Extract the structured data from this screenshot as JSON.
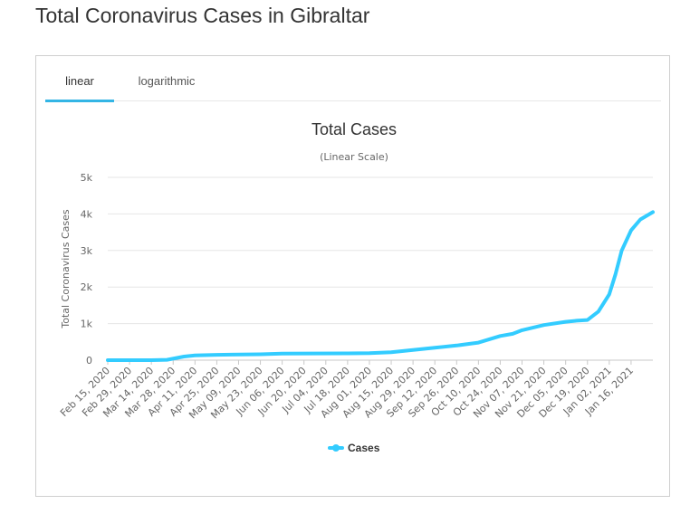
{
  "page_title": "Total Coronavirus Cases in Gibraltar",
  "tabs": [
    {
      "label": "linear",
      "active": true
    },
    {
      "label": "logarithmic",
      "active": false
    }
  ],
  "colors": {
    "accent": "#33b5e5",
    "series": "#33ccff",
    "grid": "#e6e6e6"
  },
  "chart_data": {
    "type": "line",
    "title": "Total Cases",
    "subtitle": "(Linear Scale)",
    "ylabel": "Total Coronavirus Cases",
    "xlabel": "",
    "ylim": [
      0,
      5000
    ],
    "yticks": [
      0,
      1000,
      2000,
      3000,
      4000,
      5000
    ],
    "ytick_labels": [
      "0",
      "1k",
      "2k",
      "3k",
      "4k",
      "5k"
    ],
    "xticks": [
      "Feb 15, 2020",
      "Feb 29, 2020",
      "Mar 14, 2020",
      "Mar 28, 2020",
      "Apr 11, 2020",
      "Apr 25, 2020",
      "May 09, 2020",
      "May 23, 2020",
      "Jun 06, 2020",
      "Jun 20, 2020",
      "Jul 04, 2020",
      "Jul 18, 2020",
      "Aug 01, 2020",
      "Aug 15, 2020",
      "Aug 29, 2020",
      "Sep 12, 2020",
      "Sep 26, 2020",
      "Oct 10, 2020",
      "Oct 24, 2020",
      "Nov 07, 2020",
      "Nov 21, 2020",
      "Dec 05, 2020",
      "Dec 19, 2020",
      "Jan 02, 2021",
      "Jan 16, 2021"
    ],
    "grid": true,
    "legend_position": "bottom-center",
    "series": [
      {
        "name": "Cases",
        "x": [
          "Feb 15, 2020",
          "Mar 14, 2020",
          "Mar 24, 2020",
          "Apr 04, 2020",
          "Apr 11, 2020",
          "Apr 25, 2020",
          "May 23, 2020",
          "Jun 06, 2020",
          "Jul 18, 2020",
          "Aug 01, 2020",
          "Aug 15, 2020",
          "Aug 29, 2020",
          "Sep 12, 2020",
          "Sep 26, 2020",
          "Oct 10, 2020",
          "Oct 24, 2020",
          "Nov 01, 2020",
          "Nov 07, 2020",
          "Nov 21, 2020",
          "Dec 05, 2020",
          "Dec 12, 2020",
          "Dec 19, 2020",
          "Dec 26, 2020",
          "Jan 02, 2021",
          "Jan 06, 2021",
          "Jan 10, 2021",
          "Jan 16, 2021",
          "Jan 22, 2021",
          "Jan 30, 2021"
        ],
        "values": [
          0,
          0,
          10,
          100,
          130,
          145,
          160,
          180,
          185,
          190,
          215,
          280,
          340,
          400,
          480,
          660,
          720,
          820,
          960,
          1050,
          1080,
          1100,
          1330,
          1800,
          2350,
          3000,
          3550,
          3850,
          4050
        ]
      }
    ]
  }
}
